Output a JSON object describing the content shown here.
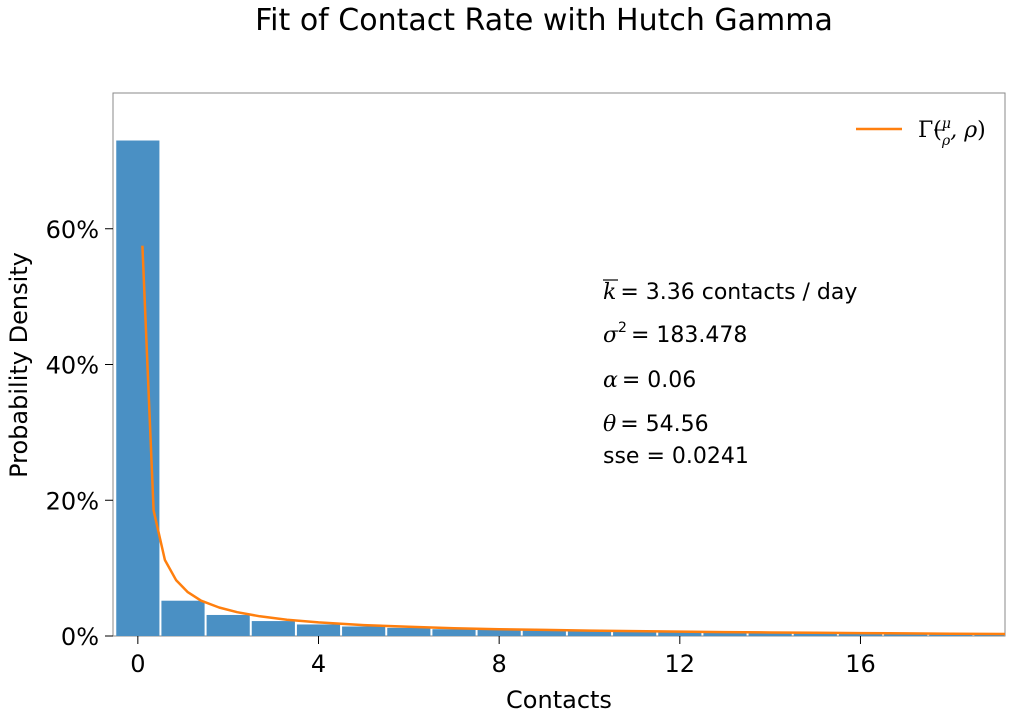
{
  "chart_data": {
    "type": "bar",
    "title": "Fit of Contact Rate with Hutch Gamma",
    "xlabel": "Contacts",
    "ylabel": "Probability Density",
    "xlim": [
      -0.55,
      19.2
    ],
    "ylim": [
      0,
      0.8
    ],
    "xticks": [
      0,
      4,
      8,
      12,
      16
    ],
    "yticks": [
      0,
      0.2,
      0.4,
      0.6
    ],
    "ytick_labels": [
      "0%",
      "20%",
      "40%",
      "60%"
    ],
    "bar_color": "#4a90c4",
    "line_color": "#ff7f0e",
    "histogram": {
      "bin_width": 1.0,
      "bins": [
        {
          "center": 0,
          "value": 0.73
        },
        {
          "center": 1,
          "value": 0.052
        },
        {
          "center": 2,
          "value": 0.031
        },
        {
          "center": 3,
          "value": 0.022
        },
        {
          "center": 4,
          "value": 0.017
        },
        {
          "center": 5,
          "value": 0.014
        },
        {
          "center": 6,
          "value": 0.012
        },
        {
          "center": 7,
          "value": 0.01
        },
        {
          "center": 8,
          "value": 0.009
        },
        {
          "center": 9,
          "value": 0.008
        },
        {
          "center": 10,
          "value": 0.007
        },
        {
          "center": 11,
          "value": 0.006
        },
        {
          "center": 12,
          "value": 0.0055
        },
        {
          "center": 13,
          "value": 0.005
        },
        {
          "center": 14,
          "value": 0.0045
        },
        {
          "center": 15,
          "value": 0.004
        },
        {
          "center": 16,
          "value": 0.0035
        },
        {
          "center": 17,
          "value": 0.003
        },
        {
          "center": 18,
          "value": 0.0028
        },
        {
          "center": 19,
          "value": 0.0025
        }
      ]
    },
    "fit_line": {
      "name": "Γ(μ/ρ, ρ)",
      "x": [
        0.1,
        0.35,
        0.6,
        0.85,
        1.1,
        1.4,
        1.8,
        2.2,
        2.7,
        3.3,
        4.0,
        5.0,
        6.0,
        7.0,
        8.0,
        9.0,
        10.0,
        11.0,
        12.0,
        13.0,
        14.0,
        15.0,
        16.0,
        17.0,
        18.0,
        19.2
      ],
      "y": [
        0.575,
        0.185,
        0.112,
        0.082,
        0.065,
        0.052,
        0.042,
        0.035,
        0.029,
        0.024,
        0.02,
        0.016,
        0.0135,
        0.0115,
        0.01,
        0.009,
        0.008,
        0.0072,
        0.0065,
        0.0058,
        0.0052,
        0.0047,
        0.0042,
        0.0038,
        0.0034,
        0.003
      ]
    },
    "legend": {
      "placement": "top-right"
    },
    "annotations": {
      "mean_value": "= 3.36 contacts / day",
      "variance_value": "= 183.478",
      "alpha_value": "= 0.06",
      "theta_value": "= 54.56",
      "sse": "sse = 0.0241"
    }
  }
}
